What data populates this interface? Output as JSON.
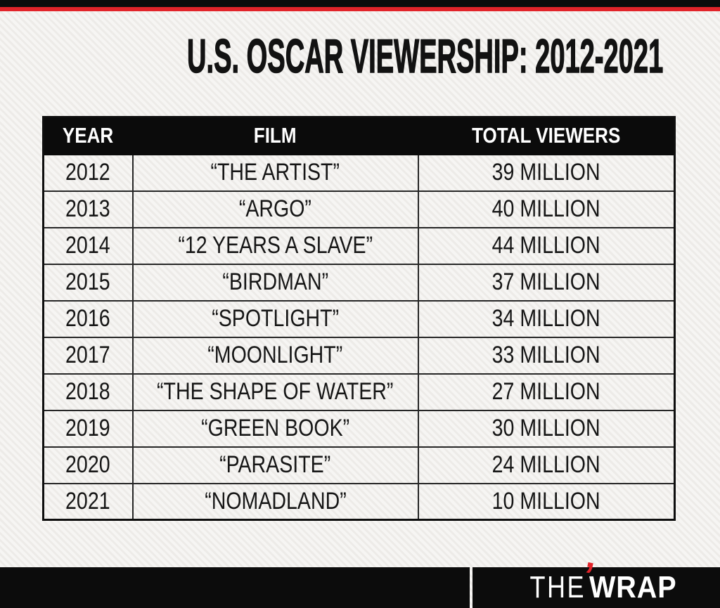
{
  "title": "U.S. OSCAR VIEWERSHIP: 2012-2021",
  "colors": {
    "brand_red": "#e2242a",
    "bar_black": "#0c0c0c",
    "background": "#f3f2f0",
    "header_row_black": "#0b0b0b",
    "text_black": "#161616"
  },
  "footer": {
    "logo_the": "THE",
    "logo_wrap": "WRAP",
    "accent_icon": "red-apostrophe-icon",
    "accent_glyph": "’"
  },
  "chart_data": {
    "type": "table",
    "title": "U.S. OSCAR VIEWERSHIP: 2012-2021",
    "columns": [
      "YEAR",
      "FILM",
      "TOTAL VIEWERS"
    ],
    "rows": [
      [
        "2012",
        "“THE ARTIST”",
        "39 MILLION"
      ],
      [
        "2013",
        "“ARGO”",
        "40 MILLION"
      ],
      [
        "2014",
        "“12 YEARS A SLAVE”",
        "44 MILLION"
      ],
      [
        "2015",
        "“BIRDMAN”",
        "37 MILLION"
      ],
      [
        "2016",
        "“SPOTLIGHT”",
        "34 MILLION"
      ],
      [
        "2017",
        "“MOONLIGHT”",
        "33 MILLION"
      ],
      [
        "2018",
        "“THE SHAPE OF WATER”",
        "27 MILLION"
      ],
      [
        "2019",
        "“GREEN BOOK”",
        "30 MILLION"
      ],
      [
        "2020",
        "“PARASITE”",
        "24 MILLION"
      ],
      [
        "2021",
        "“NOMADLAND”",
        "10 MILLION"
      ]
    ],
    "series": [
      {
        "name": "Total Viewers (millions)",
        "x": [
          2012,
          2013,
          2014,
          2015,
          2016,
          2017,
          2018,
          2019,
          2020,
          2021
        ],
        "values": [
          39,
          40,
          44,
          37,
          34,
          33,
          27,
          30,
          24,
          10
        ]
      }
    ]
  }
}
